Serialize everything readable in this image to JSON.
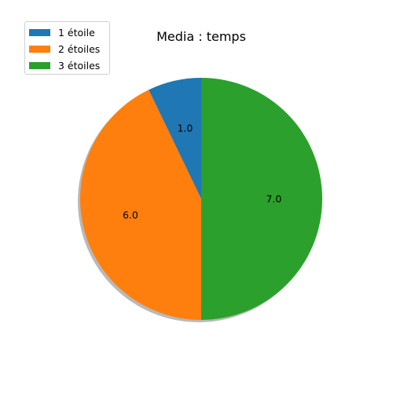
{
  "chart_data": {
    "type": "pie",
    "title": "Media : temps",
    "labels": [
      "1 étoile",
      "2 étoiles",
      "3 étoiles"
    ],
    "values": [
      1.0,
      6.0,
      7.0
    ],
    "value_labels": [
      "1.0",
      "6.0",
      "7.0"
    ],
    "colors": [
      "#1f77b4",
      "#ff7f0e",
      "#2ca02c"
    ],
    "start_angle_deg": 90,
    "direction": "counterclockwise",
    "shadow": true,
    "legend": "top-left"
  }
}
